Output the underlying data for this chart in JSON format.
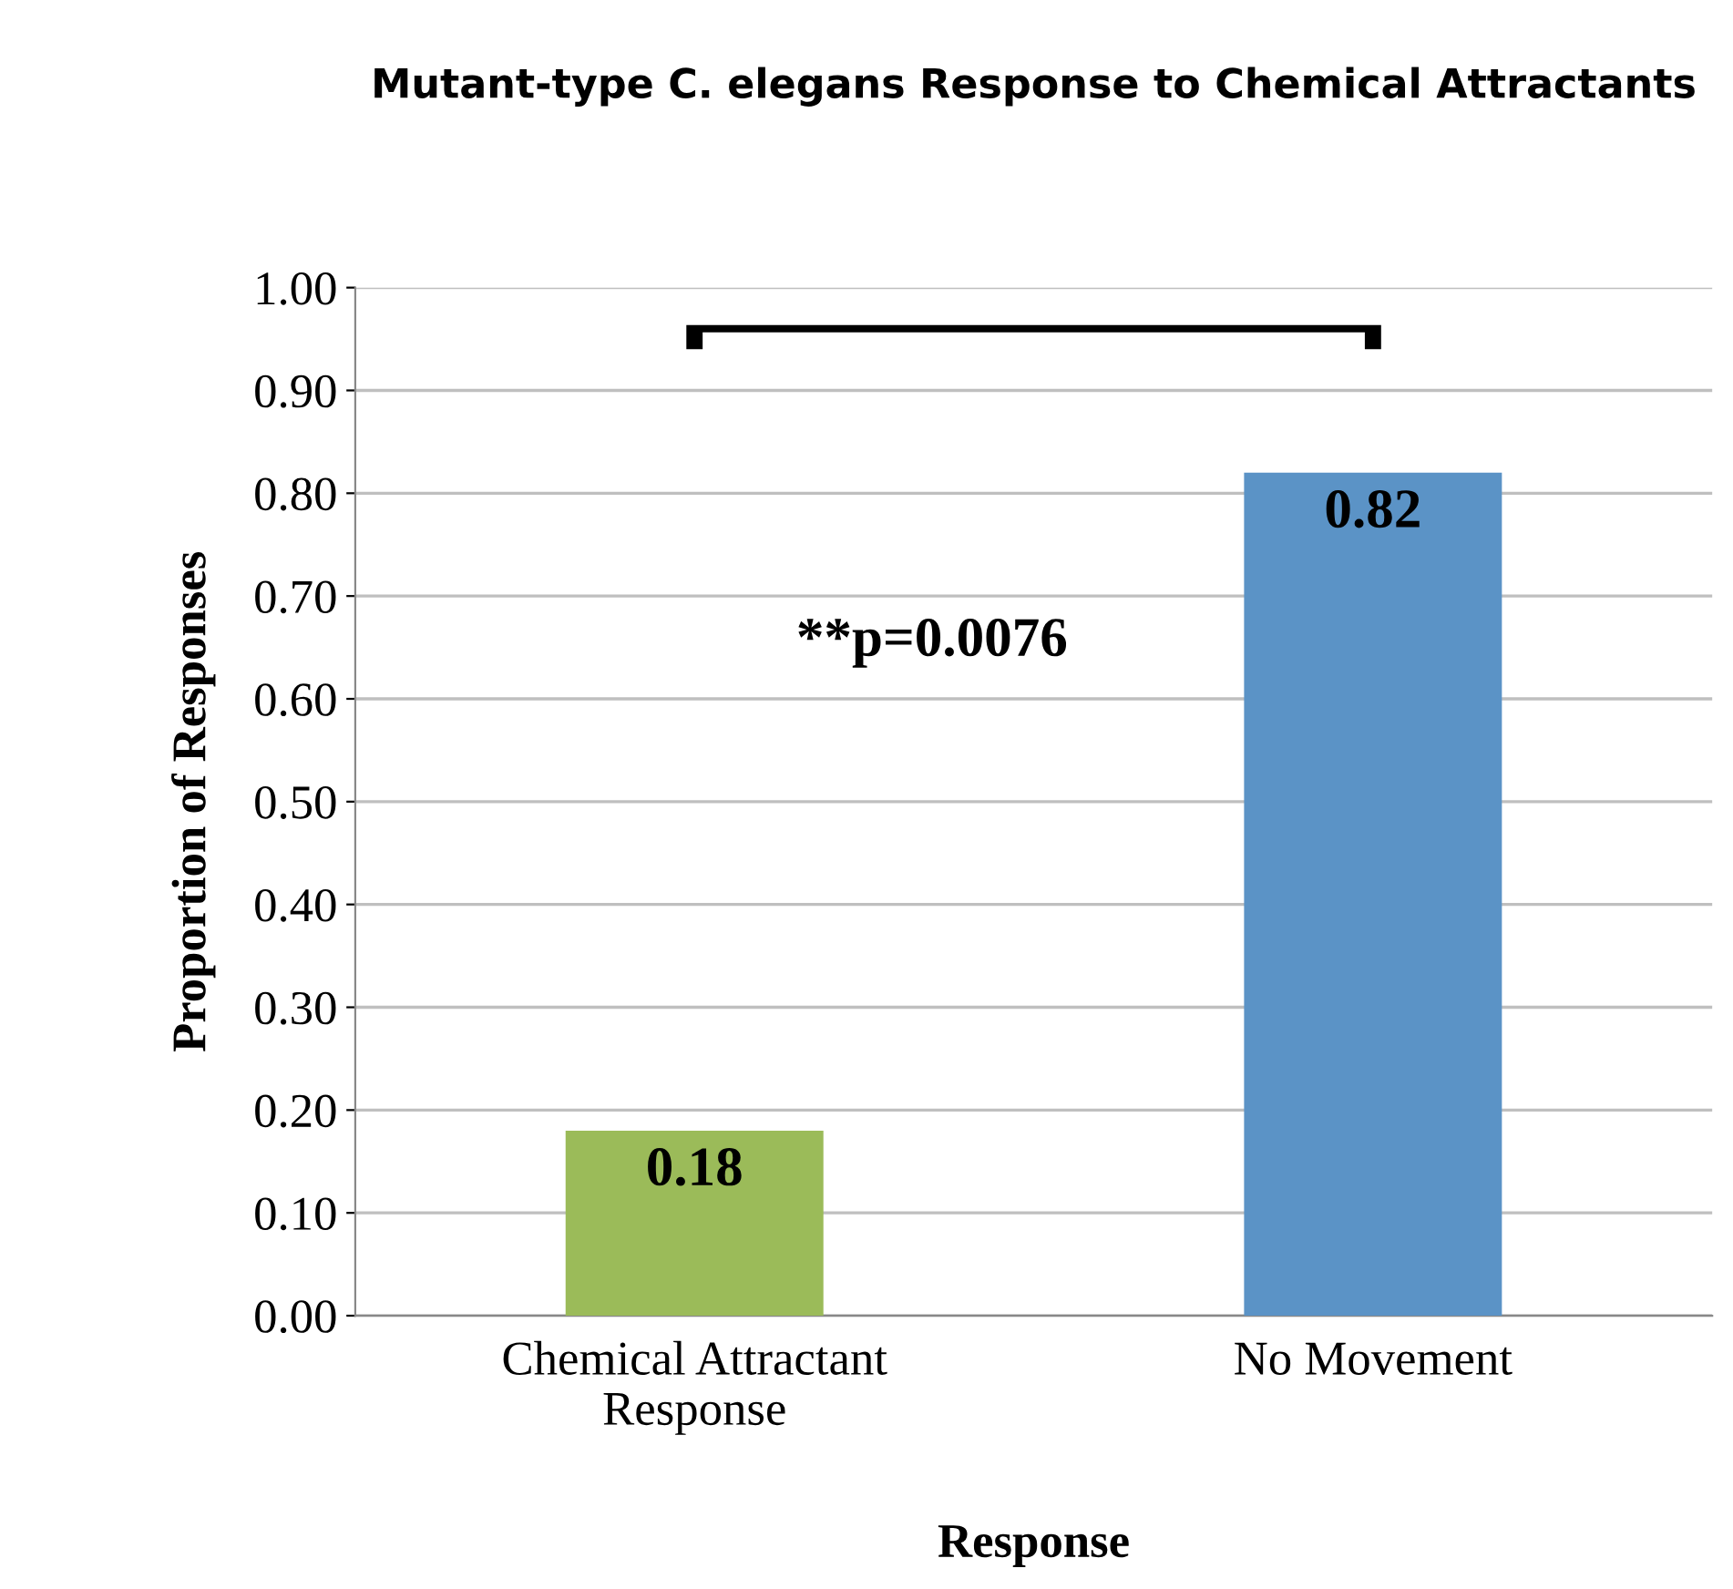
{
  "chart_data": {
    "type": "bar",
    "title": "Mutant-type C. elegans Response to Chemical Attractants",
    "xlabel": "Response",
    "ylabel": "Proportion of Responses",
    "categories": [
      "Chemical Attractant\nResponse",
      "No Movement"
    ],
    "values": [
      0.18,
      0.82
    ],
    "colors": [
      "#9bbb59",
      "#5b93c6"
    ],
    "ylim": [
      0,
      1
    ],
    "yticks": [
      {
        "value": 0,
        "label": "0.00"
      },
      {
        "value": 0.1,
        "label": "0.10"
      },
      {
        "value": 0.2,
        "label": "0.20"
      },
      {
        "value": 0.3,
        "label": "0.30"
      },
      {
        "value": 0.4,
        "label": "0.40"
      },
      {
        "value": 0.5,
        "label": "0.50"
      },
      {
        "value": 0.6,
        "label": "0.60"
      },
      {
        "value": 0.7,
        "label": "0.70"
      },
      {
        "value": 0.8,
        "label": "0.80"
      },
      {
        "value": 0.9,
        "label": "0.90"
      },
      {
        "value": 1,
        "label": "1.00"
      }
    ],
    "grid": "y",
    "data_labels": true,
    "legend": false,
    "annotations": [
      "**p=0.0076"
    ]
  }
}
